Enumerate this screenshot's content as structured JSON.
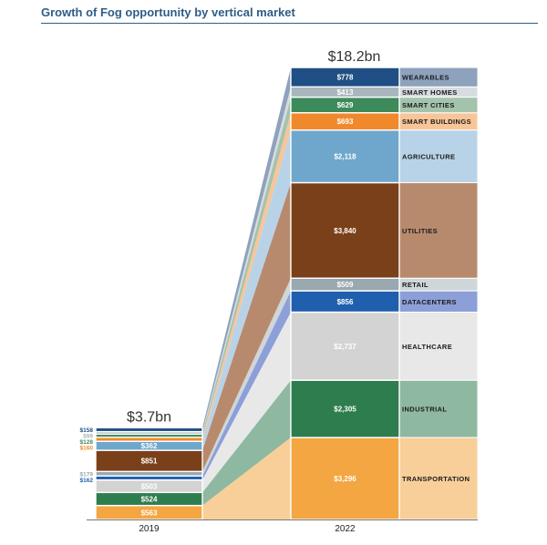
{
  "chart_data": {
    "type": "bar",
    "title": "Growth of Fog opportunity by vertical market",
    "categories": [
      "2019",
      "2022"
    ],
    "totals": [
      "$3.7bn",
      "$18.2bn"
    ],
    "series": [
      {
        "name": "TRANSPORTATION",
        "display": [
          "$563",
          "$3,296"
        ],
        "values": [
          563,
          3296
        ],
        "color": "#f3a641",
        "light": "#f8cf99"
      },
      {
        "name": "INDUSTRIAL",
        "display": [
          "$524",
          "$2,305"
        ],
        "values": [
          524,
          2305
        ],
        "color": "#2e7d4e",
        "light": "#8fb8a0"
      },
      {
        "name": "HEALTHCARE",
        "display": [
          "$503",
          "$2,737"
        ],
        "values": [
          503,
          2737
        ],
        "color": "#d3d3d3",
        "light": "#e8e8e8"
      },
      {
        "name": "DATACENTERS",
        "display": [
          "$162",
          "$856"
        ],
        "values": [
          162,
          856
        ],
        "color": "#1f5fae",
        "light": "#8d9fd8"
      },
      {
        "name": "RETAIL",
        "display": [
          "$179",
          "$509"
        ],
        "values": [
          179,
          509
        ],
        "color": "#9aa9b0",
        "light": "#cfd6d9"
      },
      {
        "name": "UTILITIES",
        "display": [
          "$851",
          "$3,840"
        ],
        "values": [
          851,
          3840
        ],
        "color": "#7a4019",
        "light": "#b88a6d"
      },
      {
        "name": "AGRICULTURE",
        "display": [
          "$362",
          "$2,118"
        ],
        "values": [
          362,
          2118
        ],
        "color": "#6fa6cc",
        "light": "#b8d3e8"
      },
      {
        "name": "SMART BUILDINGS",
        "display": [
          "$160",
          "$693"
        ],
        "values": [
          160,
          693
        ],
        "color": "#f0892b",
        "light": "#f8c599"
      },
      {
        "name": "SMART CITIES",
        "display": [
          "$128",
          "$629"
        ],
        "values": [
          128,
          629
        ],
        "color": "#3d8a5b",
        "light": "#a4c3ac"
      },
      {
        "name": "SMART HOMES",
        "display": [
          "$99",
          "$413"
        ],
        "values": [
          99,
          413
        ],
        "color": "#a9b6bd",
        "light": "#d6dce0"
      },
      {
        "name": "WEARABLES",
        "display": [
          "$158",
          "$778"
        ],
        "values": [
          158,
          778
        ],
        "color": "#1f4f84",
        "light": "#8ea2bd"
      }
    ]
  }
}
